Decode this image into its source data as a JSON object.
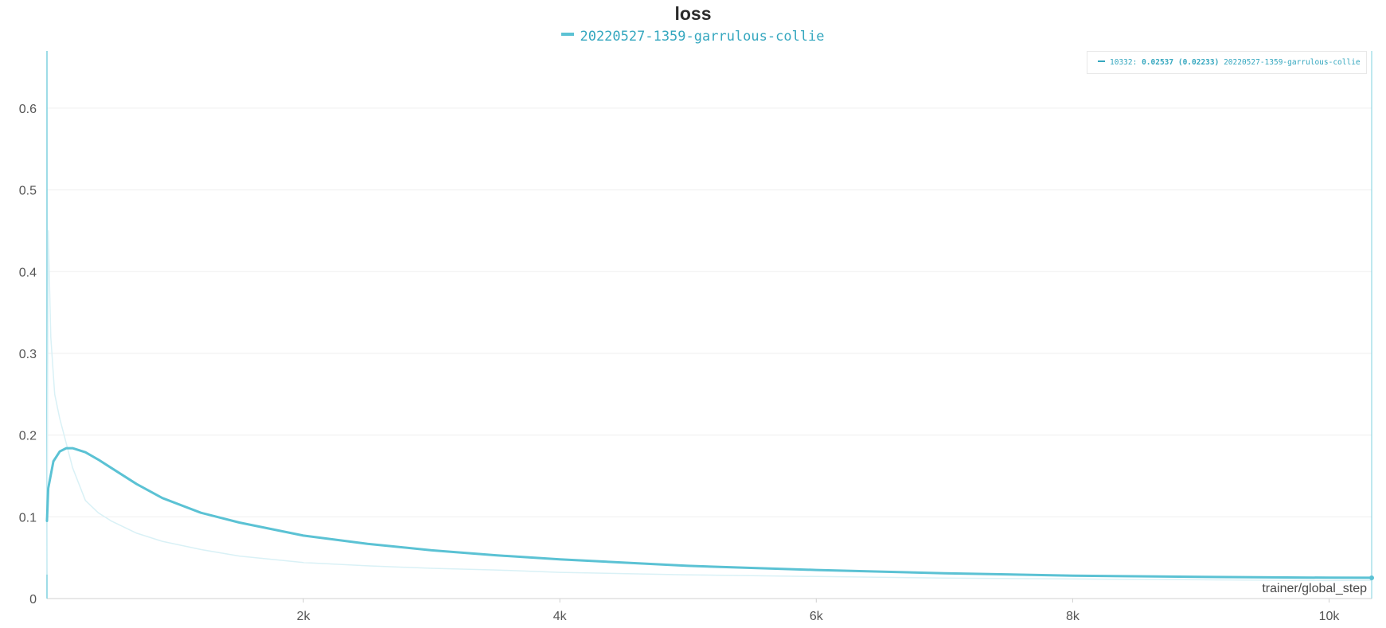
{
  "chart_data": {
    "type": "line",
    "title": "loss",
    "xlabel": "trainer/global_step",
    "ylabel": "",
    "xlim": [
      0,
      10332
    ],
    "ylim": [
      0,
      0.67
    ],
    "x_ticks": [
      2000,
      4000,
      6000,
      8000,
      10000
    ],
    "x_tick_labels": [
      "2k",
      "4k",
      "6k",
      "8k",
      "10k"
    ],
    "y_ticks": [
      0,
      0.1,
      0.2,
      0.3,
      0.4,
      0.5,
      0.6
    ],
    "y_tick_labels": [
      "0",
      "0.1",
      "0.2",
      "0.3",
      "0.4",
      "0.5",
      "0.6"
    ],
    "grid": true,
    "legend_position": "top-center",
    "series": [
      {
        "name": "20220527-1359-garrulous-collie",
        "color": "#5bc2d4",
        "smoothed": true,
        "x": [
          0,
          10,
          50,
          100,
          150,
          200,
          300,
          400,
          500,
          700,
          900,
          1200,
          1500,
          2000,
          2500,
          3000,
          3500,
          4000,
          5000,
          6000,
          7000,
          8000,
          9000,
          10000,
          10332
        ],
        "values": [
          0.095,
          0.135,
          0.168,
          0.18,
          0.184,
          0.184,
          0.179,
          0.17,
          0.16,
          0.14,
          0.123,
          0.105,
          0.093,
          0.077,
          0.067,
          0.059,
          0.053,
          0.048,
          0.04,
          0.035,
          0.031,
          0.028,
          0.0265,
          0.0255,
          0.02537
        ]
      },
      {
        "name": "20220527-1359-garrulous-collie (raw)",
        "color": "#d9f1f6",
        "smoothed": false,
        "x": [
          0,
          10,
          30,
          60,
          100,
          150,
          200,
          300,
          400,
          500,
          700,
          900,
          1200,
          1500,
          2000,
          2500,
          3000,
          3500,
          4000,
          5000,
          6000,
          7000,
          8000,
          9000,
          10000,
          10332
        ],
        "values": [
          0.03,
          0.45,
          0.32,
          0.25,
          0.22,
          0.19,
          0.16,
          0.12,
          0.105,
          0.095,
          0.08,
          0.07,
          0.06,
          0.052,
          0.044,
          0.04,
          0.037,
          0.035,
          0.032,
          0.029,
          0.027,
          0.025,
          0.024,
          0.023,
          0.022,
          0.02233
        ]
      }
    ],
    "hover": {
      "step": "10332",
      "value": "0.02537",
      "raw": "(0.02233)",
      "run": "20220527-1359-garrulous-collie"
    }
  }
}
